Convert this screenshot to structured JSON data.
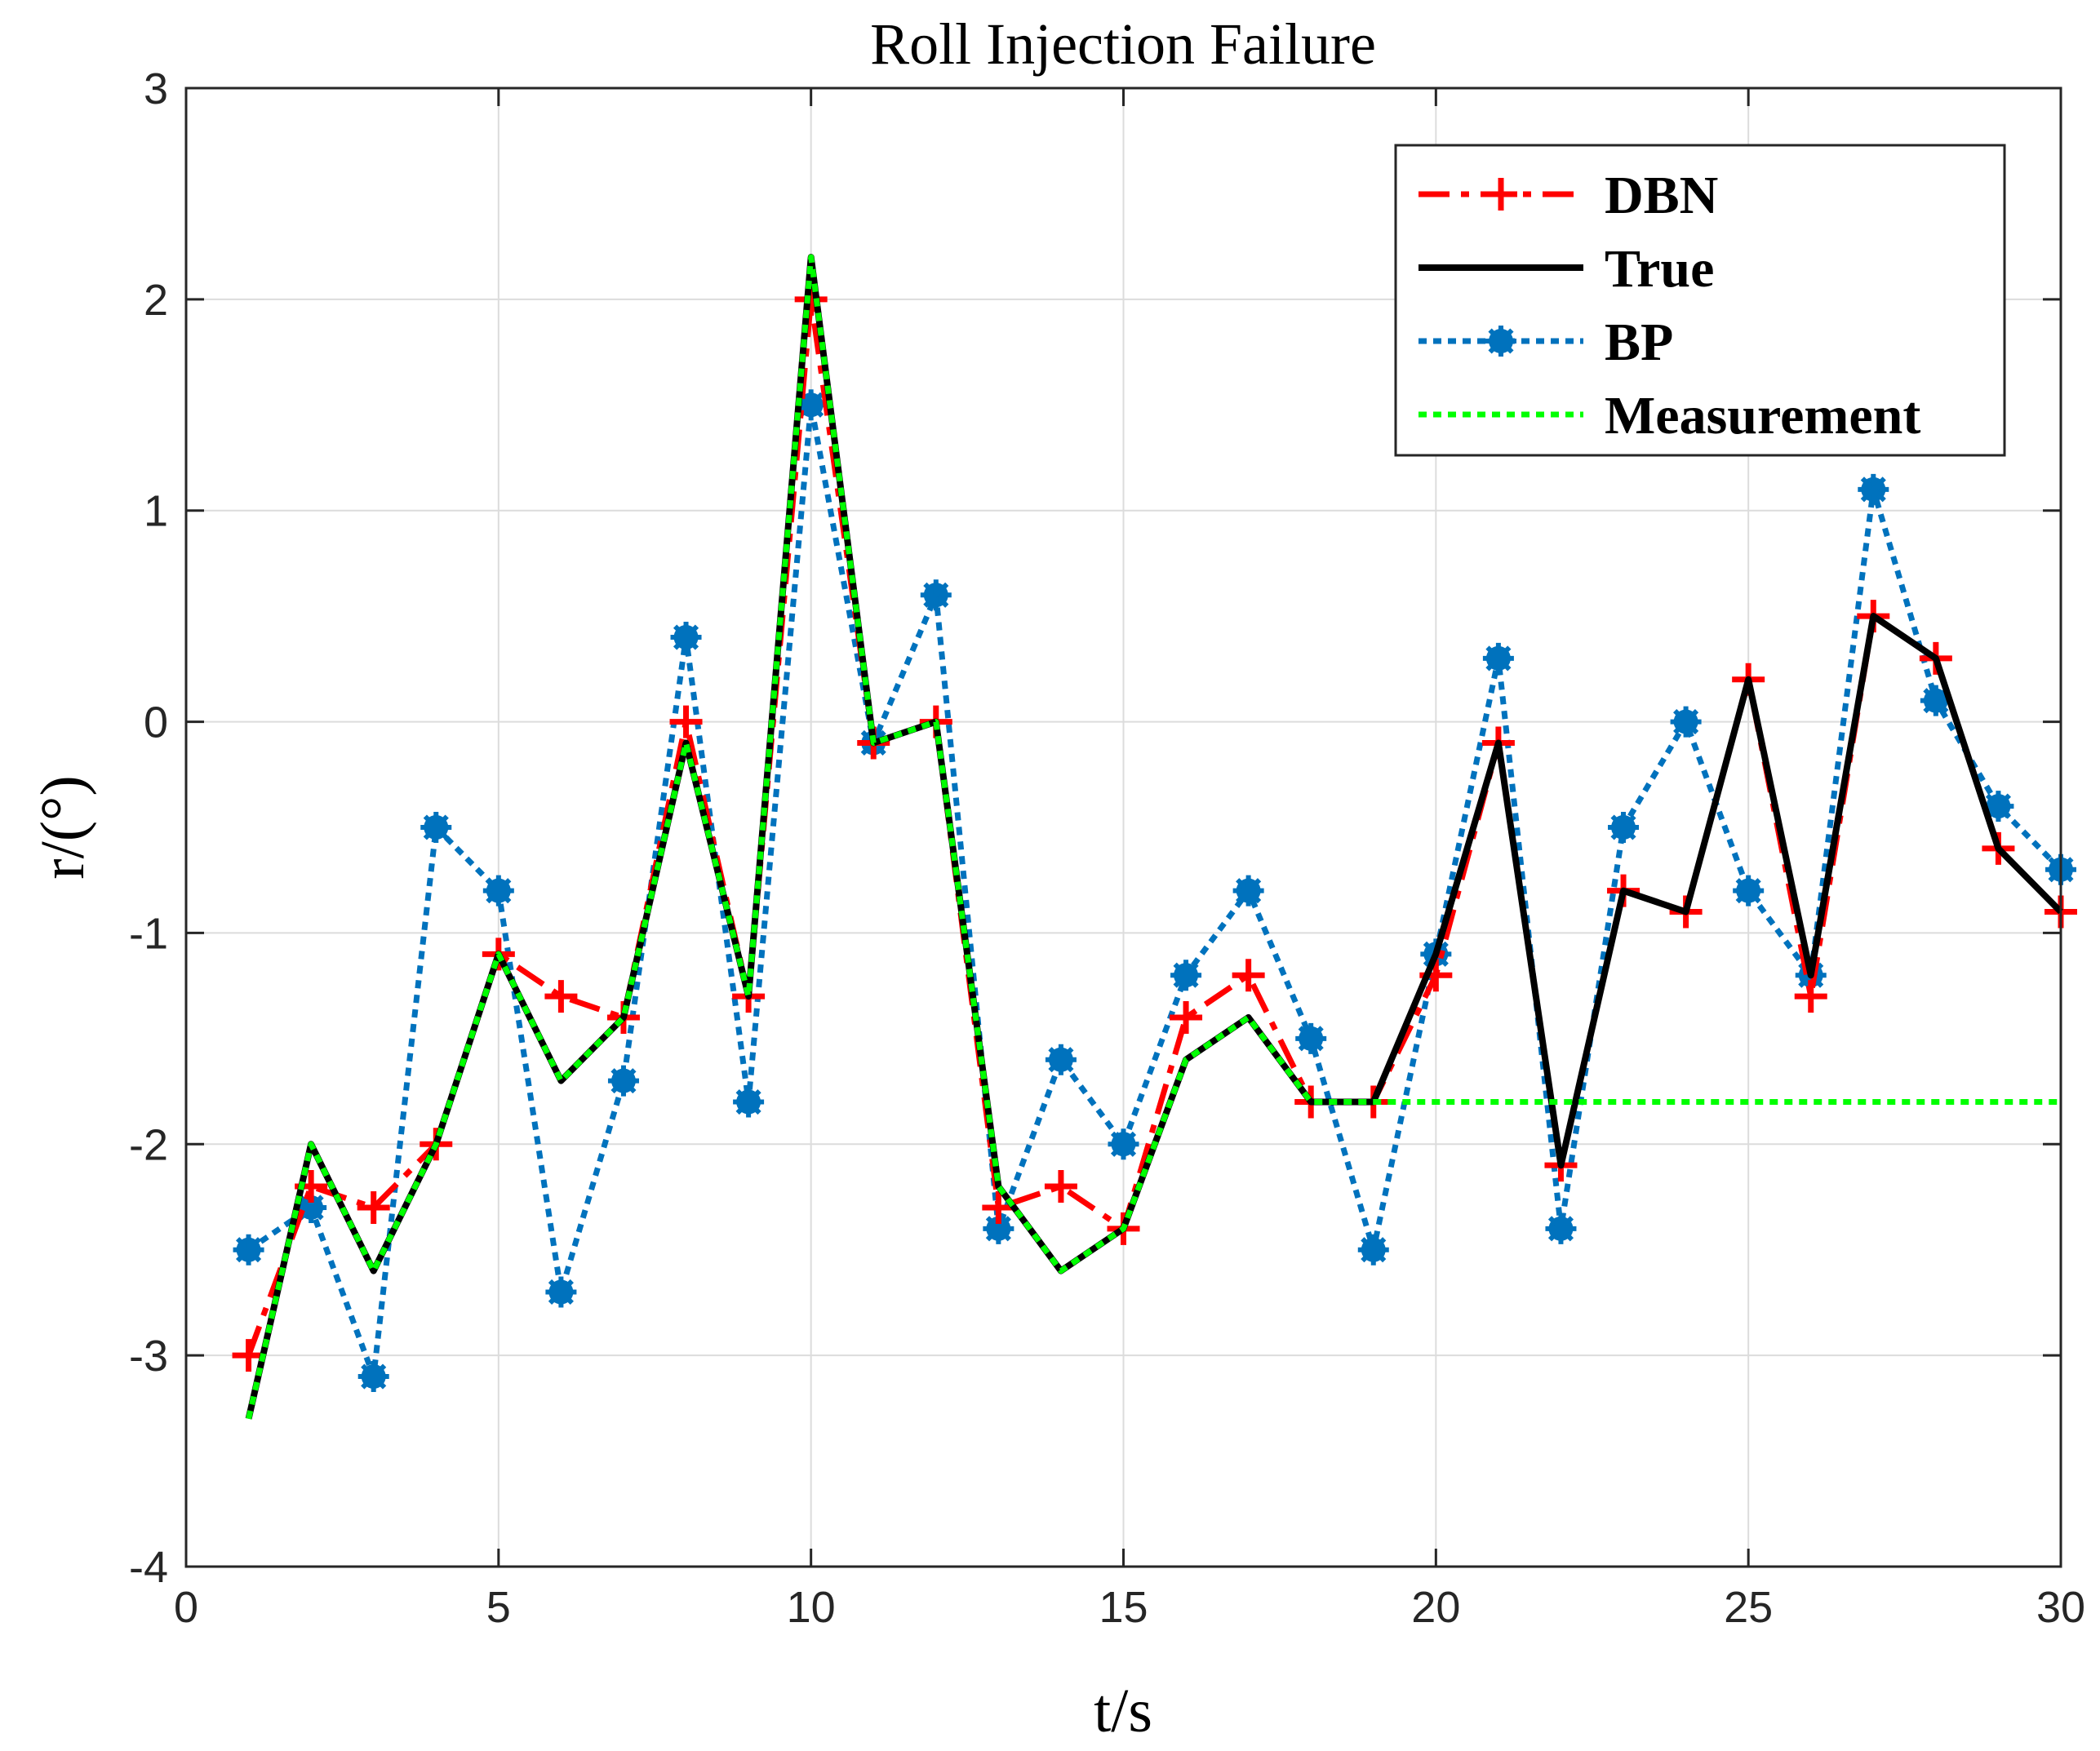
{
  "chart_data": {
    "type": "line",
    "title": "Roll Injection Failure",
    "xlabel": "t/s",
    "ylabel": "r/(°)",
    "xlim": [
      0,
      30
    ],
    "ylim": [
      -4,
      3
    ],
    "xticks": [
      0,
      5,
      10,
      15,
      20,
      25,
      30
    ],
    "xtick_labels": [
      "0",
      "5",
      "10",
      "15",
      "20",
      "25",
      "30"
    ],
    "yticks": [
      -4,
      -3,
      -2,
      -1,
      0,
      1,
      2,
      3
    ],
    "ytick_labels": [
      "-4",
      "-3",
      "-2",
      "-1",
      "0",
      "1",
      "2",
      "3"
    ],
    "grid": true,
    "legend_position": "top-right",
    "x": [
      1,
      2,
      3,
      4,
      5,
      6,
      7,
      8,
      9,
      10,
      11,
      12,
      13,
      14,
      15,
      16,
      17,
      18,
      19,
      20,
      21,
      22,
      23,
      24,
      25,
      26,
      27,
      28,
      29,
      30
    ],
    "series": [
      {
        "name": "DBN",
        "color": "#ff0000",
        "style": "dash-dot",
        "marker": "plus",
        "values": [
          -3.0,
          -2.2,
          -2.3,
          -2.0,
          -1.1,
          -1.3,
          -1.4,
          0.0,
          -1.3,
          2.0,
          -0.1,
          0.0,
          -2.3,
          -2.2,
          -2.4,
          -1.4,
          -1.2,
          -1.8,
          -1.8,
          -1.2,
          -0.1,
          -2.1,
          -0.8,
          -0.9,
          0.2,
          -1.3,
          0.5,
          0.3,
          -0.6,
          -0.9
        ]
      },
      {
        "name": "True",
        "color": "#000000",
        "style": "solid",
        "marker": "none",
        "values": [
          -3.3,
          -2.0,
          -2.6,
          -2.0,
          -1.1,
          -1.7,
          -1.4,
          -0.1,
          -1.3,
          2.2,
          -0.1,
          0.0,
          -2.2,
          -2.6,
          -2.4,
          -1.6,
          -1.4,
          -1.8,
          -1.8,
          -1.1,
          -0.1,
          -2.1,
          -0.8,
          -0.9,
          0.2,
          -1.2,
          0.5,
          0.3,
          -0.6,
          -0.9
        ]
      },
      {
        "name": "BP",
        "color": "#0072bd",
        "style": "dotted",
        "marker": "asterisk",
        "values": [
          -2.5,
          -2.3,
          -3.1,
          -0.5,
          -0.8,
          -2.7,
          -1.7,
          0.4,
          -1.8,
          1.5,
          -0.1,
          0.6,
          -2.4,
          -1.6,
          -2.0,
          -1.2,
          -0.8,
          -1.5,
          -2.5,
          -1.1,
          0.3,
          -2.4,
          -0.5,
          0.0,
          -0.8,
          -1.2,
          1.1,
          0.1,
          -0.4,
          -0.7
        ]
      },
      {
        "name": "Measurement",
        "color": "#00ff00",
        "style": "dotted",
        "marker": "none",
        "values": [
          -3.3,
          -2.0,
          -2.6,
          -2.0,
          -1.1,
          -1.7,
          -1.4,
          -0.1,
          -1.3,
          2.2,
          -0.1,
          0.0,
          -2.2,
          -2.6,
          -2.4,
          -1.6,
          -1.4,
          -1.8,
          -1.8,
          -1.8,
          -1.8,
          -1.8,
          -1.8,
          -1.8,
          -1.8,
          -1.8,
          -1.8,
          -1.8,
          -1.8,
          -1.8
        ]
      }
    ]
  }
}
